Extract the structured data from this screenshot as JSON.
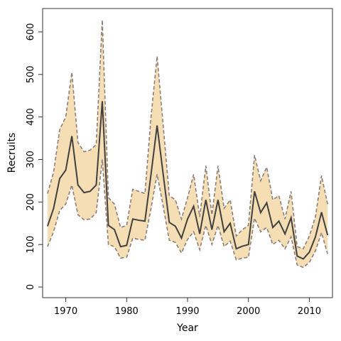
{
  "chart_data": {
    "type": "area",
    "xlabel": "Year",
    "ylabel": "Recruits",
    "xlim": [
      1966.2,
      2013.8
    ],
    "ylim": [
      -25,
      655
    ],
    "x_ticks": [
      1970,
      1980,
      1990,
      2000,
      2010
    ],
    "y_ticks": [
      0,
      100,
      200,
      300,
      400,
      500,
      600
    ],
    "grid": false,
    "legend": "none",
    "colors": {
      "band": "#f5deb3",
      "bound_line": "#8b7d7b",
      "median_line": "#404040"
    },
    "x": [
      1967,
      1968,
      1969,
      1970,
      1971,
      1972,
      1973,
      1974,
      1975,
      1976,
      1977,
      1978,
      1979,
      1980,
      1981,
      1982,
      1983,
      1984,
      1985,
      1986,
      1987,
      1988,
      1989,
      1990,
      1991,
      1992,
      1993,
      1994,
      1995,
      1996,
      1997,
      1998,
      1999,
      2000,
      2001,
      2002,
      2003,
      2004,
      2005,
      2006,
      2007,
      2008,
      2009,
      2010,
      2011,
      2012,
      2013
    ],
    "series": [
      {
        "role": "upper",
        "values": [
          220,
          270,
          370,
          400,
          505,
          340,
          318,
          322,
          335,
          628,
          210,
          195,
          140,
          145,
          230,
          225,
          220,
          400,
          543,
          380,
          215,
          205,
          160,
          210,
          265,
          165,
          285,
          170,
          285,
          185,
          205,
          120,
          135,
          145,
          310,
          250,
          282,
          205,
          215,
          160,
          225,
          95,
          90,
          120,
          165,
          262,
          195
        ]
      },
      {
        "role": "median",
        "values": [
          143,
          185,
          255,
          275,
          355,
          240,
          222,
          225,
          240,
          437,
          145,
          135,
          95,
          98,
          160,
          157,
          155,
          265,
          380,
          265,
          152,
          143,
          115,
          160,
          190,
          125,
          205,
          135,
          205,
          130,
          150,
          90,
          96,
          100,
          225,
          175,
          198,
          140,
          155,
          125,
          163,
          73,
          66,
          82,
          118,
          176,
          122
        ]
      },
      {
        "role": "lower",
        "values": [
          95,
          130,
          180,
          195,
          240,
          170,
          158,
          160,
          175,
          300,
          100,
          95,
          68,
          70,
          115,
          112,
          110,
          185,
          265,
          190,
          110,
          105,
          80,
          112,
          130,
          88,
          145,
          100,
          145,
          95,
          108,
          64,
          68,
          70,
          162,
          130,
          140,
          100,
          110,
          90,
          118,
          52,
          46,
          58,
          85,
          128,
          78
        ]
      }
    ]
  }
}
